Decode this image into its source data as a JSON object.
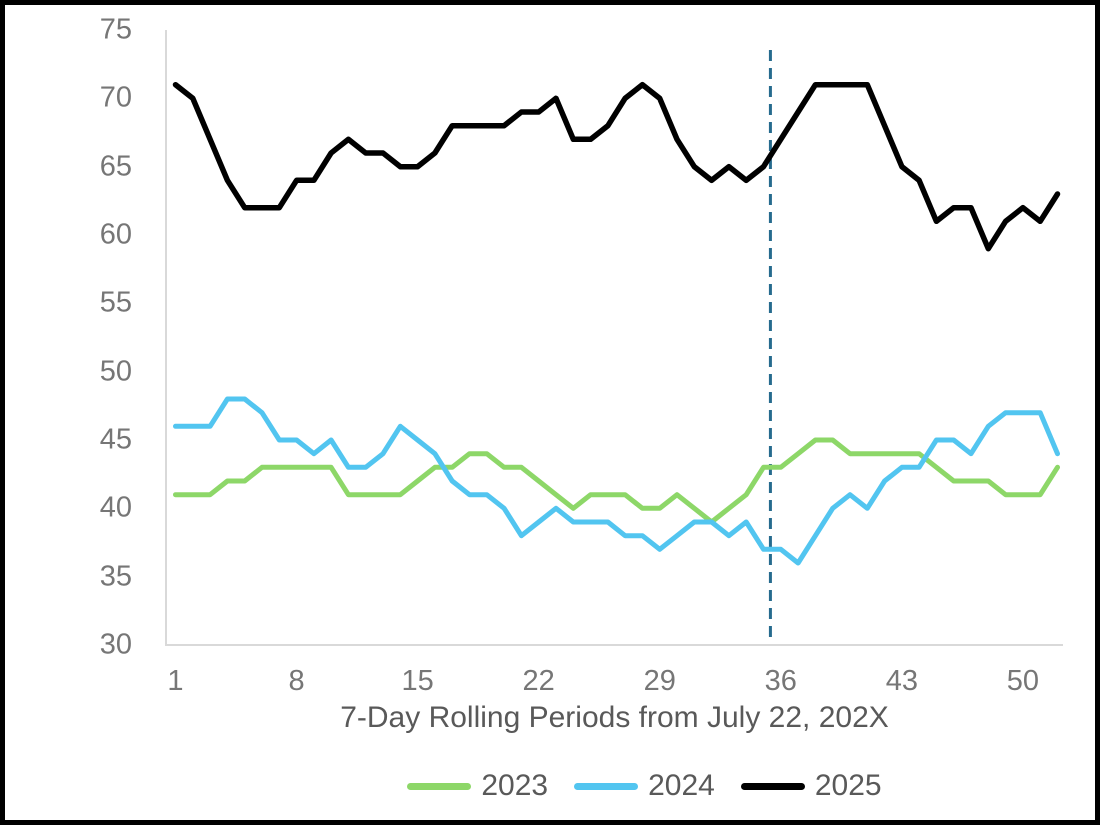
{
  "chart_data": {
    "type": "line",
    "title": "",
    "xlabel": "7-Day Rolling Periods from July 22, 202X",
    "ylabel": "",
    "xlim": [
      1,
      52
    ],
    "ylim": [
      30,
      75
    ],
    "x_ticks": [
      1,
      8,
      15,
      22,
      29,
      36,
      43,
      50
    ],
    "y_ticks": [
      75,
      70,
      65,
      60,
      55,
      50,
      45,
      40,
      35,
      30
    ],
    "grid": false,
    "legend_position": "bottom",
    "series": [
      {
        "name": "2023",
        "color": "#8DD768",
        "values": [
          41,
          41,
          41,
          42,
          42,
          43,
          43,
          43,
          43,
          43,
          41,
          41,
          41,
          41,
          42,
          43,
          43,
          44,
          44,
          43,
          43,
          42,
          41,
          40,
          41,
          41,
          41,
          40,
          40,
          41,
          40,
          39,
          40,
          41,
          43,
          43,
          44,
          45,
          45,
          44,
          44,
          44,
          44,
          44,
          43,
          42,
          42,
          42,
          41,
          41,
          41,
          43
        ]
      },
      {
        "name": "2024",
        "color": "#52C5F0",
        "values": [
          46,
          46,
          46,
          48,
          48,
          47,
          45,
          45,
          44,
          45,
          43,
          43,
          44,
          46,
          45,
          44,
          42,
          41,
          41,
          40,
          38,
          39,
          40,
          39,
          39,
          39,
          38,
          38,
          37,
          38,
          39,
          39,
          38,
          39,
          37,
          37,
          36,
          38,
          40,
          41,
          40,
          42,
          43,
          43,
          45,
          45,
          44,
          46,
          47,
          47,
          47,
          44
        ]
      },
      {
        "name": "2025",
        "color": "#000000",
        "values": [
          71,
          70,
          67,
          64,
          62,
          62,
          62,
          64,
          64,
          66,
          67,
          66,
          66,
          65,
          65,
          66,
          68,
          68,
          68,
          68,
          69,
          69,
          70,
          67,
          67,
          68,
          70,
          71,
          70,
          67,
          65,
          64,
          65,
          64,
          65,
          67,
          69,
          71,
          71,
          71,
          71,
          68,
          65,
          64,
          61,
          62,
          62,
          59,
          61,
          62,
          61,
          63
        ]
      }
    ],
    "reference_line": {
      "type": "vertical",
      "x": 35.4,
      "style": "dashed",
      "color": "#266B8E"
    }
  },
  "styles": {
    "tick_color": "#767676",
    "title_color": "#595959",
    "axis_line_color": "#D9D9D9",
    "background": "#FFFFFF",
    "border_color": "#000000"
  }
}
